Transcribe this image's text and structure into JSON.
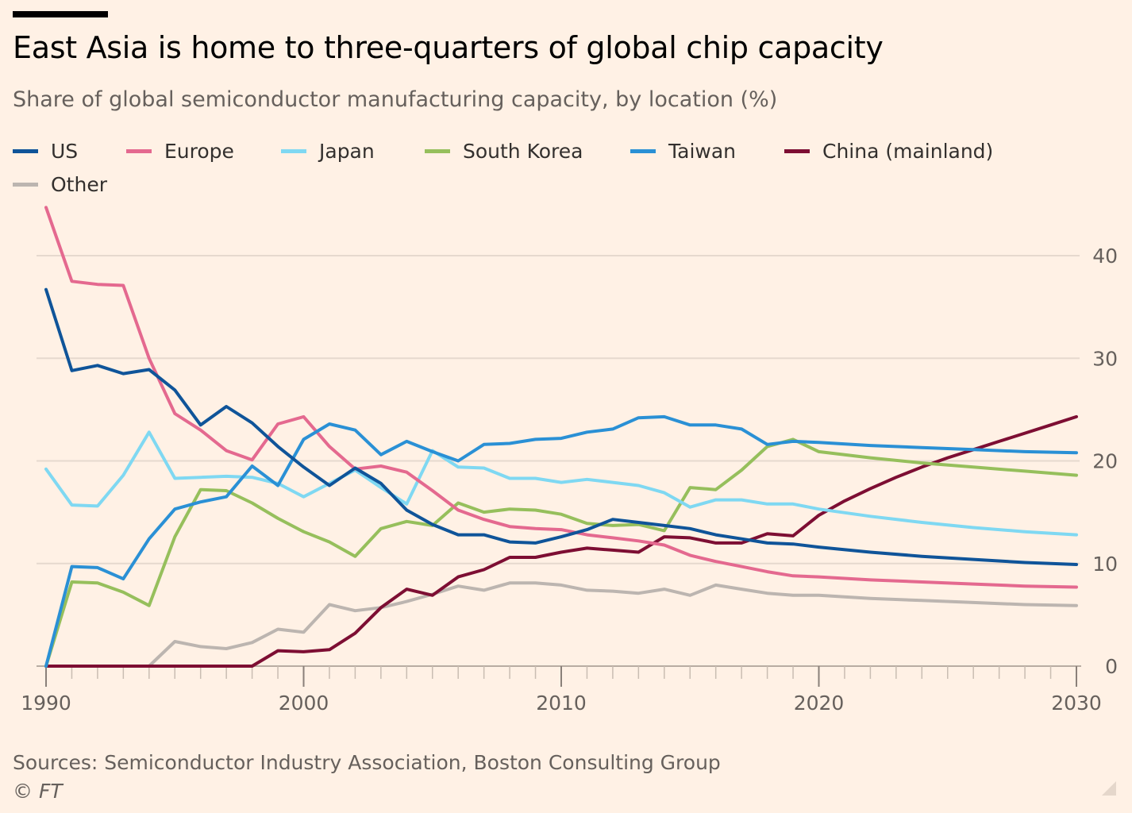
{
  "header": {
    "title": "East Asia is home to three-quarters of global chip capacity",
    "subtitle": "Share of global semiconductor manufacturing capacity, by location (%)"
  },
  "legend": [
    {
      "label": "US",
      "color": "#0f5499"
    },
    {
      "label": "Europe",
      "color": "#e4698f"
    },
    {
      "label": "Japan",
      "color": "#7fd8f2"
    },
    {
      "label": "South Korea",
      "color": "#96bf5c"
    },
    {
      "label": "Taiwan",
      "color": "#2a90d5"
    },
    {
      "label": "China (mainland)",
      "color": "#7d0e33"
    },
    {
      "label": "Other",
      "color": "#bcb5b0"
    }
  ],
  "footer": {
    "source": "Sources: Semiconductor Industry Association, Boston Consulting Group",
    "credit": "© FT"
  },
  "chart_data": {
    "type": "line",
    "x_label_ticks": [
      1990,
      2000,
      2010,
      2020,
      2030
    ],
    "y_ticks": [
      0,
      10,
      20,
      30,
      40
    ],
    "xlim": [
      1990,
      2030
    ],
    "ylim": [
      0,
      45
    ],
    "grid": true,
    "y_axis_side": "right",
    "series": [
      {
        "name": "US",
        "color": "#0f5499",
        "x": [
          1990,
          1991,
          1992,
          1993,
          1994,
          1995,
          1996,
          1997,
          1998,
          1999,
          2000,
          2001,
          2002,
          2003,
          2004,
          2005,
          2006,
          2007,
          2008,
          2009,
          2010,
          2011,
          2012,
          2013,
          2014,
          2015,
          2016,
          2017,
          2018,
          2019,
          2020,
          2022,
          2024,
          2026,
          2028,
          2030
        ],
        "y": [
          36.7,
          28.8,
          29.3,
          28.5,
          28.9,
          26.9,
          23.5,
          25.3,
          23.7,
          21.4,
          19.4,
          17.6,
          19.3,
          17.8,
          15.2,
          13.8,
          12.8,
          12.8,
          12.1,
          12.0,
          12.6,
          13.3,
          14.3,
          14.0,
          13.7,
          13.4,
          12.8,
          12.4,
          12.0,
          11.9,
          11.6,
          11.1,
          10.7,
          10.4,
          10.1,
          9.9
        ]
      },
      {
        "name": "Europe",
        "color": "#e4698f",
        "x": [
          1990,
          1991,
          1992,
          1993,
          1994,
          1995,
          1996,
          1997,
          1998,
          1999,
          2000,
          2001,
          2002,
          2003,
          2004,
          2005,
          2006,
          2007,
          2008,
          2009,
          2010,
          2011,
          2012,
          2013,
          2014,
          2015,
          2016,
          2017,
          2018,
          2019,
          2020,
          2022,
          2024,
          2026,
          2028,
          2030
        ],
        "y": [
          44.7,
          37.5,
          37.2,
          37.1,
          30.0,
          24.6,
          23.0,
          21.0,
          20.1,
          23.6,
          24.3,
          21.4,
          19.2,
          19.5,
          18.9,
          17.1,
          15.2,
          14.3,
          13.6,
          13.4,
          13.3,
          12.8,
          12.5,
          12.2,
          11.8,
          10.8,
          10.2,
          9.7,
          9.2,
          8.8,
          8.7,
          8.4,
          8.2,
          8.0,
          7.8,
          7.7
        ]
      },
      {
        "name": "Japan",
        "color": "#7fd8f2",
        "x": [
          1990,
          1991,
          1992,
          1993,
          1994,
          1995,
          1996,
          1997,
          1998,
          1999,
          2000,
          2001,
          2002,
          2003,
          2004,
          2005,
          2006,
          2007,
          2008,
          2009,
          2010,
          2011,
          2012,
          2013,
          2014,
          2015,
          2016,
          2017,
          2018,
          2019,
          2020,
          2022,
          2024,
          2026,
          2028,
          2030
        ],
        "y": [
          19.2,
          15.7,
          15.6,
          18.6,
          22.8,
          18.3,
          18.4,
          18.5,
          18.4,
          17.8,
          16.5,
          17.8,
          19.1,
          17.4,
          15.8,
          21.0,
          19.4,
          19.3,
          18.3,
          18.3,
          17.9,
          18.2,
          17.9,
          17.6,
          16.9,
          15.5,
          16.2,
          16.2,
          15.8,
          15.8,
          15.3,
          14.6,
          14.0,
          13.5,
          13.1,
          12.8
        ]
      },
      {
        "name": "South Korea",
        "color": "#96bf5c",
        "x": [
          1990,
          1991,
          1992,
          1993,
          1994,
          1995,
          1996,
          1997,
          1998,
          1999,
          2000,
          2001,
          2002,
          2003,
          2004,
          2005,
          2006,
          2007,
          2008,
          2009,
          2010,
          2011,
          2012,
          2013,
          2014,
          2015,
          2016,
          2017,
          2018,
          2019,
          2020,
          2022,
          2024,
          2026,
          2028,
          2030
        ],
        "y": [
          0.0,
          8.2,
          8.1,
          7.2,
          5.9,
          12.6,
          17.2,
          17.1,
          15.9,
          14.4,
          13.1,
          12.1,
          10.7,
          13.4,
          14.1,
          13.7,
          15.9,
          15.0,
          15.3,
          15.2,
          14.8,
          13.9,
          13.7,
          13.8,
          13.2,
          17.4,
          17.2,
          19.1,
          21.4,
          22.1,
          20.9,
          20.3,
          19.8,
          19.4,
          19.0,
          18.6
        ]
      },
      {
        "name": "Taiwan",
        "color": "#2a90d5",
        "x": [
          1990,
          1991,
          1992,
          1993,
          1994,
          1995,
          1996,
          1997,
          1998,
          1999,
          2000,
          2001,
          2002,
          2003,
          2004,
          2005,
          2006,
          2007,
          2008,
          2009,
          2010,
          2011,
          2012,
          2013,
          2014,
          2015,
          2016,
          2017,
          2018,
          2019,
          2020,
          2022,
          2024,
          2026,
          2028,
          2030
        ],
        "y": [
          0.0,
          9.7,
          9.6,
          8.5,
          12.4,
          15.3,
          16.0,
          16.5,
          19.5,
          17.6,
          22.1,
          23.6,
          23.0,
          20.6,
          21.9,
          20.9,
          20.0,
          21.6,
          21.7,
          22.1,
          22.2,
          22.8,
          23.1,
          24.2,
          24.3,
          23.5,
          23.5,
          23.1,
          21.6,
          21.9,
          21.8,
          21.5,
          21.3,
          21.1,
          20.9,
          20.8
        ]
      },
      {
        "name": "China (mainland)",
        "color": "#7d0e33",
        "x": [
          1990,
          1991,
          1992,
          1993,
          1994,
          1995,
          1996,
          1997,
          1998,
          1999,
          2000,
          2001,
          2002,
          2003,
          2004,
          2005,
          2006,
          2007,
          2008,
          2009,
          2010,
          2011,
          2012,
          2013,
          2014,
          2015,
          2016,
          2017,
          2018,
          2019,
          2020,
          2021,
          2022,
          2023,
          2024,
          2025,
          2026,
          2027,
          2028,
          2029,
          2030
        ],
        "y": [
          0.0,
          0.0,
          0.0,
          0.0,
          0.0,
          0.0,
          0.0,
          0.0,
          0.0,
          1.5,
          1.4,
          1.6,
          3.2,
          5.7,
          7.5,
          6.9,
          8.7,
          9.4,
          10.6,
          10.6,
          11.1,
          11.5,
          11.3,
          11.1,
          12.6,
          12.5,
          12.0,
          12.0,
          12.9,
          12.7,
          14.7,
          16.1,
          17.3,
          18.4,
          19.4,
          20.3,
          21.1,
          21.9,
          22.7,
          23.5,
          24.3
        ]
      },
      {
        "name": "Other",
        "color": "#bcb5b0",
        "x": [
          1990,
          1991,
          1992,
          1993,
          1994,
          1995,
          1996,
          1997,
          1998,
          1999,
          2000,
          2001,
          2002,
          2003,
          2004,
          2005,
          2006,
          2007,
          2008,
          2009,
          2010,
          2011,
          2012,
          2013,
          2014,
          2015,
          2016,
          2017,
          2018,
          2019,
          2020,
          2022,
          2024,
          2026,
          2028,
          2030
        ],
        "y": [
          0.0,
          0.0,
          0.0,
          0.0,
          0.0,
          2.4,
          1.9,
          1.7,
          2.3,
          3.6,
          3.3,
          6.0,
          5.4,
          5.7,
          6.3,
          7.0,
          7.8,
          7.4,
          8.1,
          8.1,
          7.9,
          7.4,
          7.3,
          7.1,
          7.5,
          6.9,
          7.9,
          7.5,
          7.1,
          6.9,
          6.9,
          6.6,
          6.4,
          6.2,
          6.0,
          5.9
        ]
      }
    ]
  }
}
